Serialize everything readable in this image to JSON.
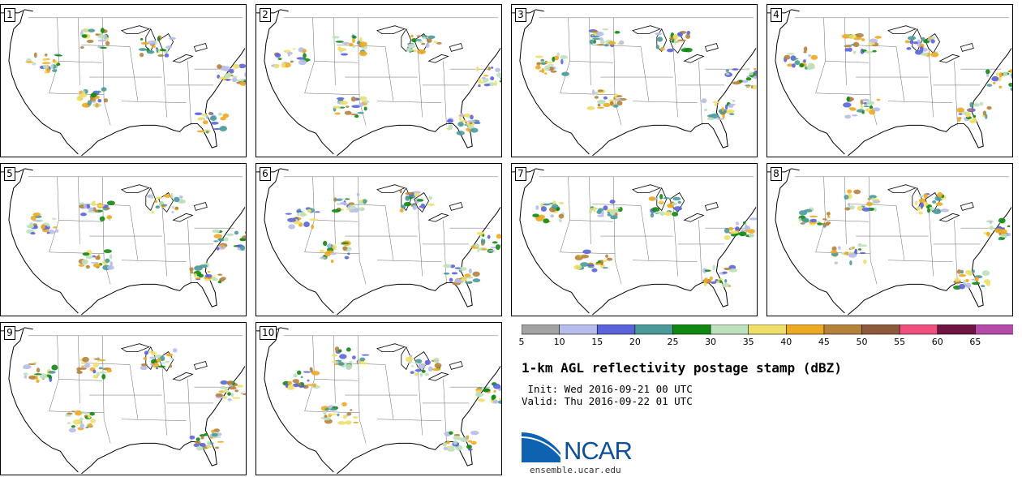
{
  "title": "1-km AGL reflectivity postage stamp (dBZ)",
  "init_text": " Init: Wed 2016-09-21 00 UTC",
  "valid_text": "Valid: Thu 2016-09-22 01 UTC",
  "logo_text": "NCAR",
  "site": "ensemble.ucar.edu",
  "members": [
    "1",
    "2",
    "3",
    "4",
    "5",
    "6",
    "7",
    "8",
    "9",
    "10"
  ],
  "colorbar": {
    "colors": [
      "#a3a3a3",
      "#b7bcea",
      "#5a63da",
      "#4a9a9a",
      "#118811",
      "#bde0bd",
      "#eedf6c",
      "#ecaa24",
      "#b5823c",
      "#8e5a3c",
      "#f0507e",
      "#6e1542",
      "#b54aa8"
    ],
    "labels": [
      "5",
      "10",
      "15",
      "20",
      "25",
      "30",
      "35",
      "40",
      "45",
      "50",
      "55",
      "60",
      "65"
    ]
  },
  "colors": {
    "logo_blue": "#0e62b0",
    "logo_text": "#0e4f9c"
  }
}
